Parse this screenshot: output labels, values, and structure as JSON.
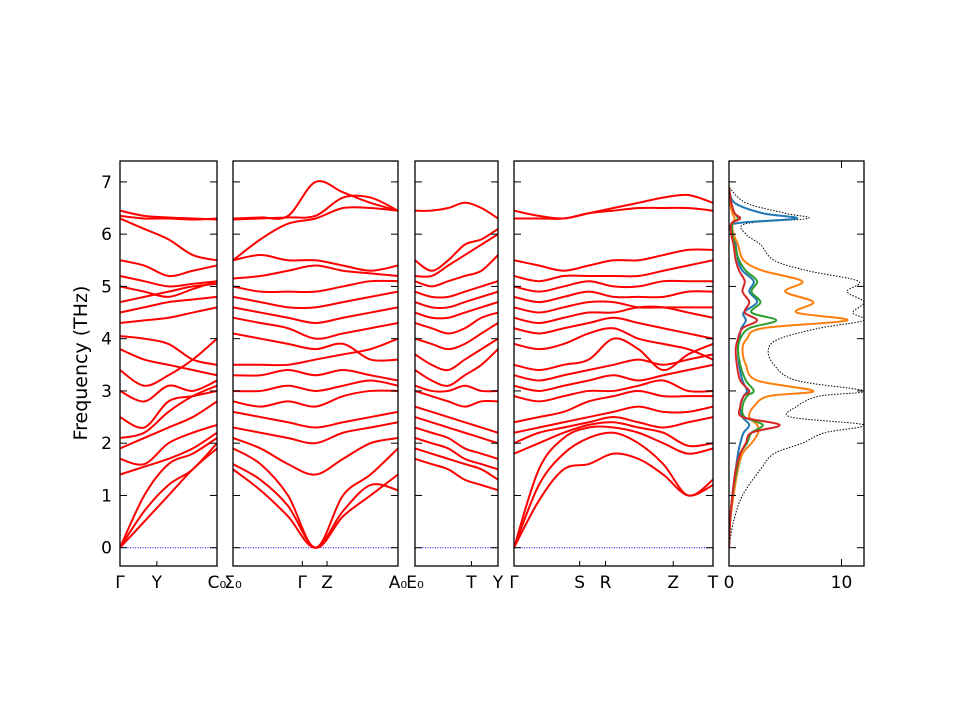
{
  "chart_data": {
    "type": "line",
    "ylabel": "Frequency (THz)",
    "ylim": [
      -0.35,
      7.4
    ],
    "yticks": [
      0,
      1,
      2,
      3,
      4,
      5,
      6,
      7
    ],
    "band_color": "#ff0000",
    "zero_line_color": "#0000ff",
    "panels": [
      {
        "labels": [
          "Γ",
          "Y",
          "C₀"
        ],
        "label_pos": [
          0,
          0.38,
          1.0
        ],
        "bands": [
          [
            0,
            0.5,
            1.0,
            1.5,
            1.9
          ],
          [
            0,
            0.7,
            1.2,
            1.5,
            2.0
          ],
          [
            0,
            1.0,
            1.6,
            1.8,
            2.1
          ],
          [
            1.4,
            1.55,
            1.7,
            1.9,
            2.2
          ],
          [
            1.7,
            1.6,
            2.0,
            2.2,
            2.35
          ],
          [
            1.9,
            2.1,
            2.3,
            2.5,
            2.8
          ],
          [
            2.1,
            2.2,
            2.6,
            2.9,
            3.1
          ],
          [
            2.5,
            2.3,
            2.8,
            2.9,
            3.0
          ],
          [
            3.0,
            2.8,
            3.1,
            3.0,
            3.2
          ],
          [
            3.4,
            3.1,
            3.3,
            3.6,
            4.0
          ],
          [
            3.8,
            3.6,
            3.5,
            3.4,
            3.3
          ],
          [
            4.05,
            4.0,
            3.9,
            3.6,
            3.5
          ],
          [
            4.3,
            4.35,
            4.4,
            4.5,
            4.6
          ],
          [
            4.5,
            4.6,
            4.7,
            4.75,
            4.8
          ],
          [
            4.7,
            4.8,
            4.9,
            5.0,
            5.05
          ],
          [
            5.0,
            4.9,
            4.8,
            4.95,
            5.1
          ],
          [
            5.2,
            5.1,
            5.0,
            5.05,
            5.1
          ],
          [
            5.5,
            5.4,
            5.2,
            5.3,
            5.4
          ],
          [
            6.3,
            6.1,
            5.9,
            5.6,
            5.5
          ],
          [
            6.45,
            6.35,
            6.32,
            6.3,
            6.28
          ],
          [
            6.35,
            6.3,
            6.3,
            6.28,
            6.3
          ]
        ]
      },
      {
        "labels": [
          "Σ₀",
          "Γ",
          "Z",
          "A₀"
        ],
        "label_pos": [
          0,
          0.42,
          0.57,
          1.0
        ],
        "bands": [
          [
            1.5,
            1.1,
            0.6,
            0.0,
            0.7,
            1.2,
            1.1
          ],
          [
            1.6,
            1.3,
            0.8,
            0.0,
            0.6,
            1.0,
            1.4
          ],
          [
            1.9,
            1.6,
            1.0,
            0.0,
            1.0,
            1.4,
            1.9
          ],
          [
            2.1,
            1.9,
            1.6,
            1.4,
            1.7,
            2.0,
            2.1
          ],
          [
            2.3,
            2.2,
            2.1,
            2.0,
            2.2,
            2.3,
            2.4
          ],
          [
            2.6,
            2.5,
            2.4,
            2.3,
            2.4,
            2.5,
            2.6
          ],
          [
            2.8,
            2.7,
            2.8,
            2.7,
            2.9,
            3.0,
            3.0
          ],
          [
            3.0,
            3.0,
            3.1,
            3.0,
            3.1,
            3.2,
            3.1
          ],
          [
            3.3,
            3.3,
            3.4,
            3.3,
            3.4,
            3.3,
            3.2
          ],
          [
            3.5,
            3.5,
            3.5,
            3.6,
            3.7,
            3.8,
            4.0
          ],
          [
            4.1,
            4.0,
            3.9,
            3.8,
            3.9,
            3.6,
            3.6
          ],
          [
            4.4,
            4.3,
            4.2,
            4.0,
            4.1,
            4.2,
            4.3
          ],
          [
            4.6,
            4.5,
            4.4,
            4.3,
            4.4,
            4.5,
            4.6
          ],
          [
            4.8,
            4.7,
            4.6,
            4.6,
            4.7,
            4.8,
            4.9
          ],
          [
            5.0,
            4.9,
            4.9,
            4.9,
            5.0,
            5.1,
            5.1
          ],
          [
            5.15,
            5.2,
            5.3,
            5.4,
            5.3,
            5.25,
            5.2
          ],
          [
            5.5,
            5.6,
            5.5,
            5.5,
            5.4,
            5.3,
            5.4
          ],
          [
            5.5,
            5.9,
            6.2,
            6.3,
            6.5,
            6.5,
            6.45
          ],
          [
            6.28,
            6.3,
            6.32,
            6.35,
            6.7,
            6.7,
            6.45
          ],
          [
            6.3,
            6.32,
            6.35,
            7.0,
            6.8,
            6.6,
            6.45
          ]
        ]
      },
      {
        "labels": [
          "E₀",
          "T",
          "Y"
        ],
        "label_pos": [
          0,
          0.68,
          1.0
        ],
        "bands": [
          [
            1.7,
            1.6,
            1.5,
            1.3,
            1.2,
            1.1
          ],
          [
            1.9,
            1.8,
            1.7,
            1.6,
            1.5,
            1.3
          ],
          [
            2.1,
            2.0,
            1.9,
            1.7,
            1.6,
            1.5
          ],
          [
            2.3,
            2.2,
            2.1,
            1.9,
            1.8,
            1.7
          ],
          [
            2.5,
            2.4,
            2.3,
            2.2,
            2.1,
            2.0
          ],
          [
            2.7,
            2.6,
            2.5,
            2.4,
            2.3,
            2.2
          ],
          [
            3.0,
            2.9,
            2.8,
            2.7,
            2.8,
            2.8
          ],
          [
            3.1,
            3.0,
            3.0,
            3.1,
            3.0,
            3.0
          ],
          [
            3.4,
            3.2,
            3.1,
            3.3,
            3.5,
            3.8
          ],
          [
            3.7,
            3.5,
            3.4,
            3.6,
            3.8,
            4.0
          ],
          [
            4.0,
            3.9,
            3.8,
            3.9,
            4.1,
            4.3
          ],
          [
            4.3,
            4.2,
            4.1,
            4.2,
            4.4,
            4.5
          ],
          [
            4.5,
            4.4,
            4.4,
            4.5,
            4.6,
            4.7
          ],
          [
            4.7,
            4.6,
            4.6,
            4.7,
            4.8,
            4.9
          ],
          [
            4.9,
            4.8,
            4.8,
            4.9,
            5.0,
            5.1
          ],
          [
            5.1,
            5.0,
            5.1,
            5.2,
            5.3,
            5.6
          ],
          [
            5.2,
            5.2,
            5.4,
            5.6,
            5.8,
            6.0
          ],
          [
            5.5,
            5.3,
            5.5,
            5.8,
            5.9,
            6.1
          ],
          [
            6.45,
            6.45,
            6.5,
            6.6,
            6.5,
            6.3
          ]
        ]
      },
      {
        "labels": [
          "Γ",
          "S",
          "R",
          "Z",
          "T"
        ],
        "label_pos": [
          0,
          0.33,
          0.46,
          0.8,
          1.0
        ],
        "bands": [
          [
            0,
            0.9,
            1.5,
            1.6,
            1.8,
            1.7,
            1.4,
            1.0,
            1.2
          ],
          [
            0,
            1.2,
            1.8,
            2.1,
            2.2,
            2.0,
            1.6,
            1.0,
            1.3
          ],
          [
            0,
            1.5,
            2.1,
            2.3,
            2.3,
            2.2,
            2.0,
            1.8,
            1.9
          ],
          [
            1.8,
            2.0,
            2.2,
            2.35,
            2.4,
            2.3,
            2.2,
            1.95,
            2.0
          ],
          [
            2.0,
            2.2,
            2.3,
            2.4,
            2.5,
            2.4,
            2.3,
            2.4,
            2.5
          ],
          [
            2.2,
            2.3,
            2.4,
            2.5,
            2.6,
            2.7,
            2.6,
            2.6,
            2.7
          ],
          [
            2.4,
            2.5,
            2.6,
            2.8,
            2.9,
            3.0,
            2.9,
            2.9,
            2.9
          ],
          [
            2.9,
            2.8,
            2.9,
            3.0,
            3.0,
            3.1,
            3.2,
            3.0,
            3.0
          ],
          [
            3.1,
            3.0,
            3.1,
            3.2,
            3.3,
            3.2,
            3.3,
            3.4,
            3.5
          ],
          [
            3.3,
            3.2,
            3.3,
            3.4,
            3.5,
            3.6,
            3.5,
            3.6,
            3.7
          ],
          [
            3.5,
            3.4,
            3.5,
            3.6,
            4.0,
            3.8,
            3.4,
            3.7,
            3.9
          ],
          [
            3.9,
            3.8,
            3.9,
            4.1,
            4.2,
            4.0,
            3.9,
            3.8,
            3.6
          ],
          [
            4.2,
            4.1,
            4.2,
            4.3,
            4.4,
            4.3,
            4.2,
            4.1,
            4.0
          ],
          [
            4.4,
            4.3,
            4.4,
            4.5,
            4.5,
            4.6,
            4.6,
            4.5,
            4.4
          ],
          [
            4.6,
            4.5,
            4.6,
            4.7,
            4.7,
            4.6,
            4.6,
            4.6,
            4.6
          ],
          [
            4.8,
            4.7,
            4.8,
            4.9,
            4.8,
            4.8,
            4.8,
            4.9,
            4.9
          ],
          [
            5.0,
            4.9,
            5.0,
            5.1,
            5.0,
            5.0,
            5.1,
            5.1,
            5.1
          ],
          [
            5.2,
            5.1,
            5.2,
            5.2,
            5.2,
            5.2,
            5.3,
            5.4,
            5.5
          ],
          [
            5.5,
            5.4,
            5.3,
            5.4,
            5.5,
            5.5,
            5.6,
            5.7,
            5.7
          ],
          [
            6.3,
            6.3,
            6.3,
            6.4,
            6.45,
            6.5,
            6.5,
            6.5,
            6.45
          ],
          [
            6.45,
            6.35,
            6.3,
            6.4,
            6.5,
            6.6,
            6.7,
            6.75,
            6.6
          ]
        ]
      },
      {
        "type": "dos",
        "xlim": [
          0,
          12
        ],
        "xticks": [
          0,
          10
        ],
        "frequency": [
          0,
          0.5,
          1.0,
          1.5,
          1.8,
          2.0,
          2.2,
          2.35,
          2.5,
          2.7,
          2.9,
          3.0,
          3.2,
          3.5,
          3.8,
          4.0,
          4.2,
          4.35,
          4.5,
          4.7,
          4.9,
          5.1,
          5.3,
          5.5,
          5.8,
          6.0,
          6.2,
          6.3,
          6.4,
          6.6,
          6.9
        ],
        "total": [
          0,
          0.4,
          1.2,
          2.8,
          4.0,
          6.5,
          8.5,
          12.0,
          5.5,
          6.0,
          8.0,
          12.0,
          6.0,
          4.0,
          3.5,
          4.5,
          8.0,
          12.0,
          11.0,
          12.0,
          10.5,
          11.5,
          7.0,
          4.0,
          2.8,
          1.5,
          1.5,
          7.0,
          5.0,
          1.5,
          0
        ],
        "series": [
          {
            "color": "#1f77b4",
            "values": [
              0,
              0.1,
              0.3,
              0.6,
              0.8,
              1.0,
              1.3,
              1.8,
              1.2,
              1.0,
              1.3,
              1.6,
              1.2,
              0.9,
              0.8,
              0.9,
              1.1,
              1.5,
              1.3,
              2.5,
              1.8,
              2.2,
              1.2,
              0.8,
              0.6,
              0.4,
              0.5,
              6.0,
              3.0,
              0.5,
              0
            ]
          },
          {
            "color": "#ff7f0e",
            "values": [
              0,
              0.1,
              0.4,
              0.8,
              1.2,
              2.0,
              2.6,
              2.5,
              1.8,
              2.2,
              3.5,
              7.5,
              2.5,
              1.5,
              1.2,
              1.6,
              3.0,
              10.5,
              6.0,
              7.5,
              5.0,
              6.5,
              3.0,
              1.3,
              0.8,
              0.4,
              0.3,
              0.5,
              0.3,
              0.1,
              0
            ]
          },
          {
            "color": "#2ca02c",
            "values": [
              0,
              0.1,
              0.3,
              0.7,
              1.0,
              1.6,
              2.0,
              3.0,
              1.4,
              1.2,
              1.6,
              2.2,
              1.5,
              1.0,
              0.8,
              1.0,
              1.8,
              4.2,
              2.0,
              2.8,
              2.0,
              2.5,
              1.5,
              0.9,
              0.5,
              0.3,
              0.3,
              0.8,
              0.5,
              0.2,
              0
            ]
          },
          {
            "color": "#d62728",
            "values": [
              0,
              0.1,
              0.3,
              0.6,
              1.0,
              1.5,
              2.0,
              4.5,
              1.2,
              1.0,
              1.3,
              1.8,
              1.0,
              0.7,
              0.6,
              0.8,
              1.2,
              2.5,
              1.4,
              1.8,
              1.2,
              1.4,
              0.9,
              0.6,
              0.4,
              0.2,
              0.2,
              1.0,
              0.5,
              0.2,
              0
            ]
          }
        ]
      }
    ]
  }
}
